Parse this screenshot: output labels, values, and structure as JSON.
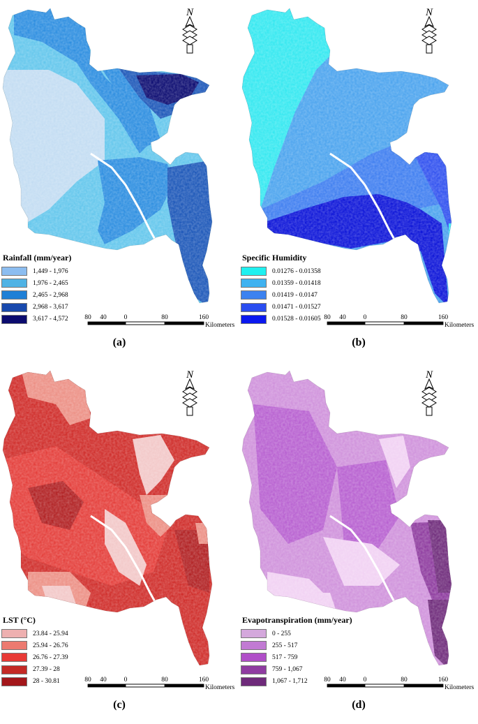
{
  "panels": [
    {
      "id": "a",
      "caption": "(a)",
      "legend_title": "Rainfall (mm/year)",
      "classes": [
        {
          "label": "1,449 - 1,976",
          "color": "#8cbdf0"
        },
        {
          "label": "1,976 - 2,465",
          "color": "#4fb3e5"
        },
        {
          "label": "2,465 - 2,968",
          "color": "#1f80d6"
        },
        {
          "label": "2,968 - 3,617",
          "color": "#1849ad"
        },
        {
          "label": "3,617 - 4,572",
          "color": "#0b0b6e"
        }
      ],
      "zone_colors": [
        "#c2dcf2",
        "#62c6ec",
        "#2b8de0",
        "#1b56b8",
        "#0a0a70"
      ]
    },
    {
      "id": "b",
      "caption": "(b)",
      "legend_title": "Specific Humidity",
      "classes": [
        {
          "label": "0.01276 - 0.01358",
          "color": "#1ff0f0"
        },
        {
          "label": "0.01359 - 0.01418",
          "color": "#3fb2f0"
        },
        {
          "label": "0.01419 - 0.0147",
          "color": "#3c82f0"
        },
        {
          "label": "0.01471 - 0.01527",
          "color": "#2a4df0"
        },
        {
          "label": "0.01528 - 0.01605",
          "color": "#0a18ef"
        }
      ],
      "zone_colors": [
        "#33e8f0",
        "#4aa3ee",
        "#3d7df0",
        "#2f50ef",
        "#0a12d8"
      ]
    },
    {
      "id": "c",
      "caption": "(c)",
      "legend_title": "LST (°C)",
      "classes": [
        {
          "label": "23.84 - 25.94",
          "color": "#eeb0b0"
        },
        {
          "label": "25.94 - 26.76",
          "color": "#ec7a70"
        },
        {
          "label": "26.76 - 27.39",
          "color": "#e83a36"
        },
        {
          "label": "27.39 - 28",
          "color": "#c42a26"
        },
        {
          "label": "28 - 30.81",
          "color": "#a3161a"
        }
      ],
      "zone_colors": [
        "#f2c7c7",
        "#ec8f84",
        "#e43c38",
        "#cf2b28",
        "#b01e20"
      ]
    },
    {
      "id": "d",
      "caption": "(d)",
      "legend_title": "Evapotranspiration (mm/year)",
      "classes": [
        {
          "label": "0 - 255",
          "color": "#d4a8dc"
        },
        {
          "label": "255 - 517",
          "color": "#c17ad3"
        },
        {
          "label": "517 - 759",
          "color": "#b04fc8"
        },
        {
          "label": "759 - 1,067",
          "color": "#8f3ca1"
        },
        {
          "label": "1,067 - 1,712",
          "color": "#6e2a7a"
        }
      ],
      "zone_colors": [
        "#f1d1f3",
        "#cf91db",
        "#b75fd0",
        "#8d3a9e",
        "#6e2a7a"
      ]
    }
  ],
  "north_label": "N",
  "scale": {
    "ticks": [
      "80",
      "40",
      "0",
      "80",
      "160"
    ],
    "unit": "Kilometers"
  }
}
